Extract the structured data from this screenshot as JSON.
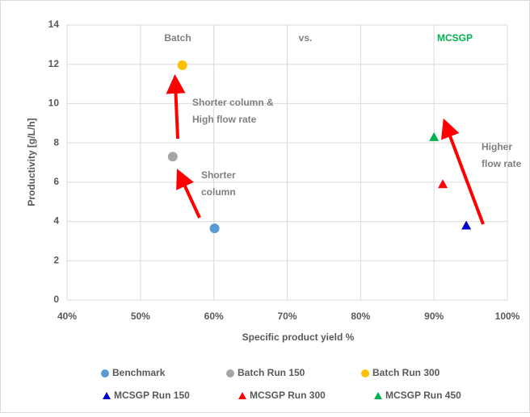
{
  "chart_data": {
    "type": "scatter",
    "xlabel": "Specific product yield %",
    "ylabel": "Productivity [g/L/h]",
    "xlim": [
      40,
      100
    ],
    "ylim": [
      0,
      14
    ],
    "xticks": [
      {
        "value": 40,
        "label": "40%"
      },
      {
        "value": 50,
        "label": "50%"
      },
      {
        "value": 60,
        "label": "60%"
      },
      {
        "value": 70,
        "label": "70%"
      },
      {
        "value": 80,
        "label": "80%"
      },
      {
        "value": 90,
        "label": "90%"
      },
      {
        "value": 100,
        "label": "100%"
      }
    ],
    "yticks": [
      0,
      2,
      4,
      6,
      8,
      10,
      12,
      14
    ],
    "grid": true,
    "series": [
      {
        "name": "Benchmark",
        "color": "#5b9bd5",
        "marker": "circle",
        "x": [
          60.1
        ],
        "values": [
          3.65
        ]
      },
      {
        "name": "Batch Run 150",
        "color": "#a5a5a5",
        "marker": "circle",
        "x": [
          54.4
        ],
        "values": [
          7.3
        ]
      },
      {
        "name": "Batch Run 300",
        "color": "#ffc000",
        "marker": "circle",
        "x": [
          55.7
        ],
        "values": [
          11.95
        ]
      },
      {
        "name": "MCSGP Run 150",
        "color": "#0000cc",
        "marker": "triangle",
        "x": [
          94.4
        ],
        "values": [
          3.8
        ]
      },
      {
        "name": "MCSGP Run 300",
        "color": "#ff0000",
        "marker": "triangle",
        "x": [
          91.2
        ],
        "values": [
          5.9
        ]
      },
      {
        "name": "MCSGP Run 450",
        "color": "#00b050",
        "marker": "triangle",
        "x": [
          90.0
        ],
        "values": [
          8.3
        ]
      }
    ],
    "annotations": [
      {
        "text": [
          "Batch"
        ],
        "color": "#808080"
      },
      {
        "text": [
          "vs."
        ],
        "color": "#808080"
      },
      {
        "text": [
          "MCSGP"
        ],
        "color": "#00b050"
      },
      {
        "text": [
          "Shorter column &",
          "High flow rate"
        ],
        "color": "#808080"
      },
      {
        "text": [
          "Shorter",
          "column"
        ],
        "color": "#808080"
      },
      {
        "text": [
          "Higher",
          "flow rate"
        ],
        "color": "#808080"
      }
    ]
  }
}
